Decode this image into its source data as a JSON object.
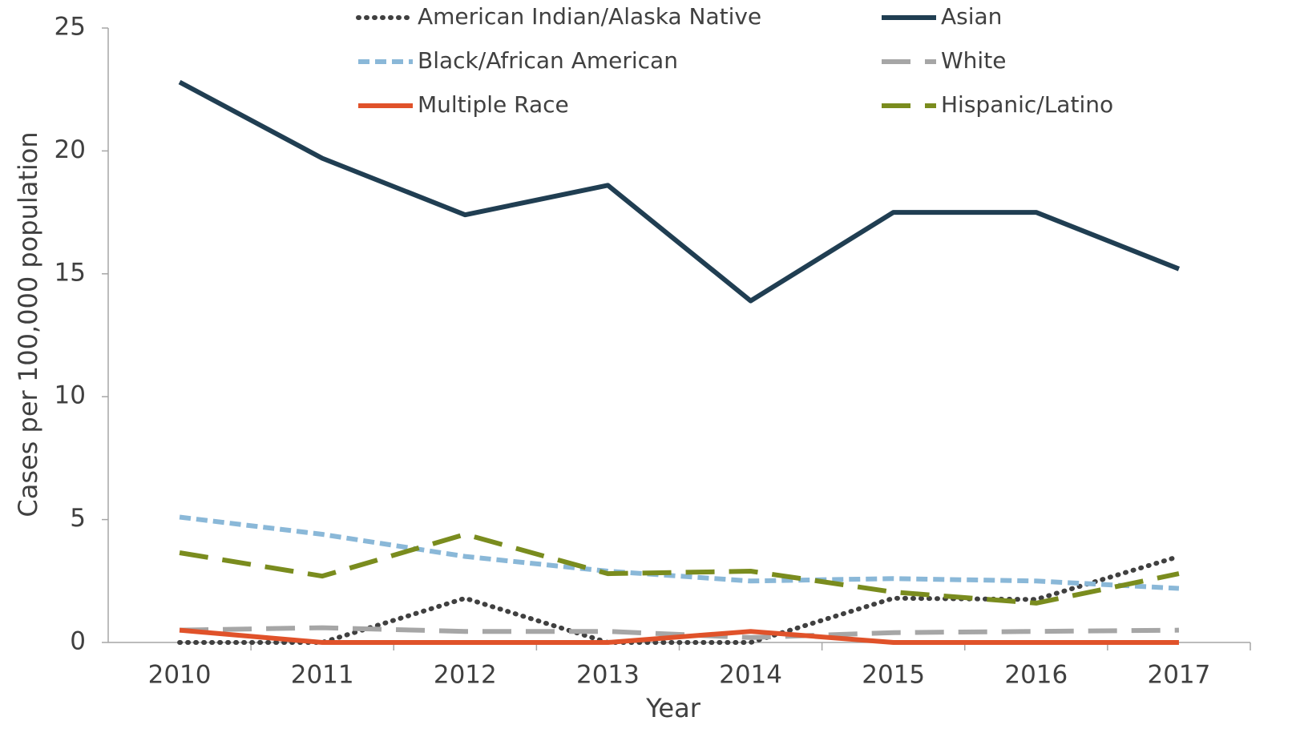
{
  "chart_data": {
    "type": "line",
    "x_label": "Year",
    "y_label": "Cases per 100,000 population",
    "categories": [
      "2010",
      "2011",
      "2012",
      "2013",
      "2014",
      "2015",
      "2016",
      "2017"
    ],
    "ylim": [
      0,
      25
    ],
    "yticks": [
      0,
      5,
      10,
      15,
      20,
      25
    ],
    "series": [
      {
        "name": "American Indian/Alaska Native",
        "color": "#404040",
        "style": "dotted",
        "values": [
          0,
          0,
          1.8,
          0,
          0,
          1.8,
          1.75,
          3.5
        ]
      },
      {
        "name": "Asian",
        "color": "#203e52",
        "style": "solid",
        "values": [
          22.8,
          19.7,
          17.4,
          18.6,
          13.9,
          17.5,
          17.5,
          15.2
        ]
      },
      {
        "name": "Black/African American",
        "color": "#8ab8d8",
        "style": "dashed",
        "values": [
          5.1,
          4.4,
          3.5,
          2.9,
          2.5,
          2.6,
          2.5,
          2.2
        ]
      },
      {
        "name": "White",
        "color": "#a6a6a6",
        "style": "longdash",
        "values": [
          0.5,
          0.6,
          0.45,
          0.45,
          0.2,
          0.4,
          0.45,
          0.5
        ]
      },
      {
        "name": "Multiple Race",
        "color": "#e0522a",
        "style": "solid",
        "values": [
          0.5,
          0,
          0,
          0,
          0.45,
          0,
          0,
          0
        ]
      },
      {
        "name": "Hispanic/Latino",
        "color": "#7a8c1e",
        "style": "longdash",
        "values": [
          3.65,
          2.7,
          4.4,
          2.8,
          2.9,
          2.05,
          1.6,
          2.8
        ]
      }
    ]
  }
}
